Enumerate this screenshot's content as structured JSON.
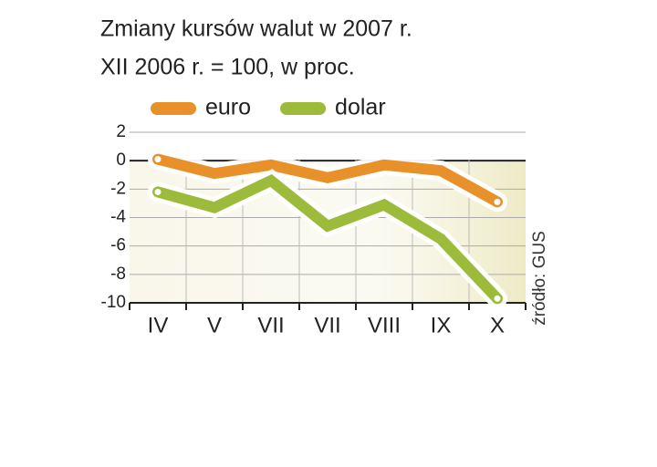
{
  "chart_data": {
    "type": "line",
    "title": "Zmiany kursów walut w 2007 r.",
    "subtitle": "XII 2006 r. = 100, w proc.",
    "source": "źródło: GUS",
    "categories": [
      "IV",
      "V",
      "VII",
      "VII",
      "VIII",
      "IX",
      "X"
    ],
    "series": [
      {
        "name": "euro",
        "color": "#e8912a",
        "values": [
          0.1,
          -0.9,
          -0.3,
          -1.2,
          -0.3,
          -0.7,
          -2.9
        ]
      },
      {
        "name": "dolar",
        "color": "#9dbb3a",
        "values": [
          -2.2,
          -3.3,
          -1.4,
          -4.6,
          -3.1,
          -5.5,
          -9.7
        ]
      }
    ],
    "ylim": [
      -10,
      2
    ],
    "yticks": [
      2,
      0,
      -2,
      -4,
      -6,
      -8,
      -10
    ],
    "grid": true
  }
}
